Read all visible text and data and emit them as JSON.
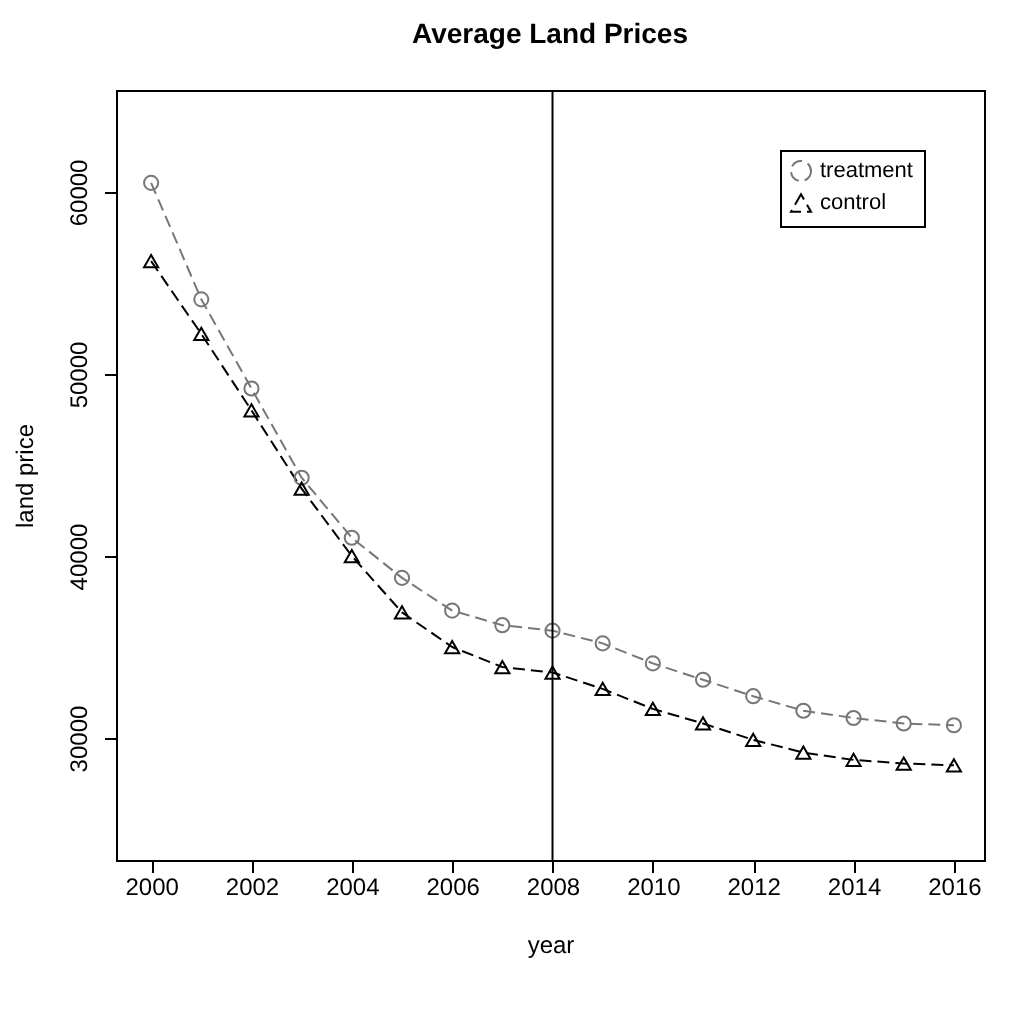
{
  "chart_data": {
    "type": "line",
    "title": "Average Land Prices",
    "xlabel": "year",
    "ylabel": "land price",
    "x": [
      2000,
      2001,
      2002,
      2003,
      2004,
      2005,
      2006,
      2007,
      2008,
      2009,
      2010,
      2011,
      2012,
      2013,
      2014,
      2015,
      2016
    ],
    "series": [
      {
        "name": "treatment",
        "color": "#777777",
        "marker": "circle",
        "line_style": "dashed",
        "values": [
          60500,
          54100,
          49200,
          44300,
          41000,
          38800,
          37000,
          36200,
          35900,
          35200,
          34100,
          33200,
          32300,
          31500,
          31100,
          30800,
          30700
        ]
      },
      {
        "name": "control",
        "color": "#000000",
        "marker": "triangle",
        "line_style": "dashed",
        "values": [
          56200,
          52200,
          48000,
          43700,
          40000,
          36900,
          35000,
          33900,
          33600,
          32700,
          31600,
          30800,
          29900,
          29200,
          28800,
          28600,
          28500
        ]
      }
    ],
    "xlim": [
      1999.3,
      2016.6
    ],
    "xticks": [
      2000,
      2002,
      2004,
      2006,
      2008,
      2010,
      2012,
      2014,
      2016
    ],
    "ylim": [
      23300,
      65600
    ],
    "yticks": [
      30000,
      40000,
      50000,
      60000
    ],
    "ref_lines": [
      {
        "axis": "x",
        "value": 2008,
        "color": "#000000"
      }
    ],
    "grid": false,
    "legend": "top right"
  }
}
